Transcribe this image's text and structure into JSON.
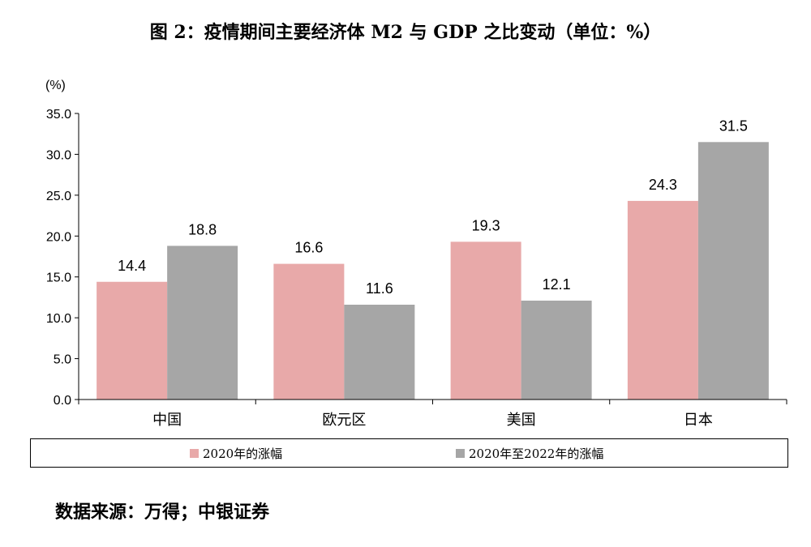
{
  "title": "图 2：疫情期间主要经济体 M2 与 GDP 之比变动（单位：%）",
  "source": "数据来源：万得；中银证券",
  "colors": {
    "series1": "#e8a9a9",
    "series2": "#a6a6a6"
  },
  "chart_data": {
    "type": "bar",
    "categories": [
      "中国",
      "欧元区",
      "美国",
      "日本"
    ],
    "series": [
      {
        "name": "2020年的涨幅",
        "values": [
          14.4,
          16.6,
          19.3,
          24.3
        ]
      },
      {
        "name": "2020年至2022年的涨幅",
        "values": [
          18.8,
          11.6,
          12.1,
          31.5
        ]
      }
    ],
    "ylabel": "(%)",
    "ylim": [
      0,
      35
    ],
    "yticks": [
      "0.0",
      "5.0",
      "10.0",
      "15.0",
      "20.0",
      "25.0",
      "30.0",
      "35.0"
    ],
    "grid": false,
    "legend": "bottom"
  }
}
